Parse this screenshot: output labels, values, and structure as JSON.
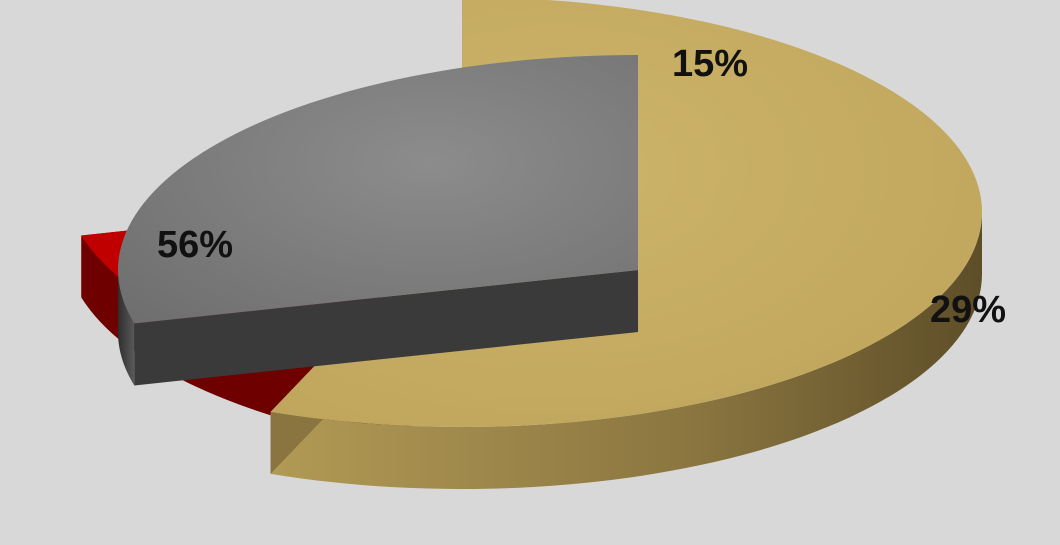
{
  "chart_data": {
    "type": "pie",
    "style": "3d-exploded",
    "categories": [
      "",
      "",
      ""
    ],
    "values": [
      56,
      15,
      29
    ],
    "data_labels": [
      "56%",
      "15%",
      "29%"
    ],
    "colors": [
      "#c8b066",
      "#c00000",
      "#808080"
    ],
    "side_colors": [
      "#8a7540",
      "#6e0000",
      "#3a3a3a"
    ],
    "legend": false,
    "title": ""
  }
}
